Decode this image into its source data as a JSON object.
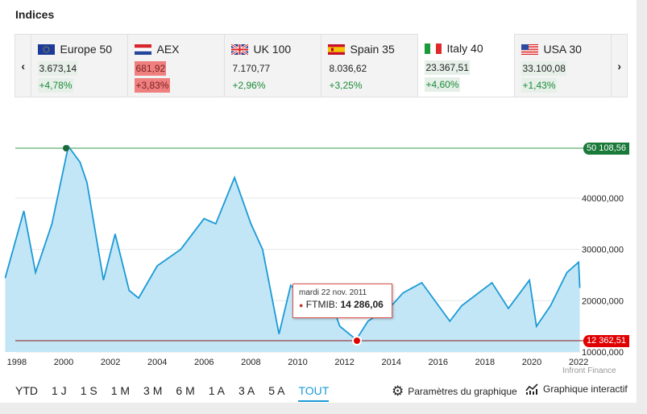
{
  "header": {
    "title": "Indices"
  },
  "tabs": [
    {
      "name": "Europe 50",
      "flag": "eu",
      "value": "3.673,14",
      "change": "+4,78%",
      "state": "up-highlight"
    },
    {
      "name": "AEX",
      "flag": "nl",
      "value": "681,92",
      "change": "+3,83%",
      "state": "down-highlight"
    },
    {
      "name": "UK 100",
      "flag": "uk",
      "value": "7.170,77",
      "change": "+2,96%",
      "state": "plain"
    },
    {
      "name": "Spain 35",
      "flag": "es",
      "value": "8.036,62",
      "change": "+3,25%",
      "state": "plain"
    },
    {
      "name": "Italy 40",
      "flag": "it",
      "value": "23.367,51",
      "change": "+4,60%",
      "state": "active"
    },
    {
      "name": "USA 30",
      "flag": "us",
      "value": "33.100,08",
      "change": "+1,43%",
      "state": "up-highlight"
    }
  ],
  "nav": {
    "prev_icon": "chevron-left-icon",
    "next_icon": "chevron-right-icon"
  },
  "chart_data": {
    "type": "area",
    "x_ticks": [
      "1998",
      "2000",
      "2002",
      "2004",
      "2006",
      "2008",
      "2010",
      "2012",
      "2014",
      "2016",
      "2018",
      "2020",
      "2022"
    ],
    "y_ticks": [
      "10000,000",
      "20000,000",
      "30000,000",
      "40000,000"
    ],
    "ylim": [
      10000,
      51000
    ],
    "series": [
      {
        "name": "FTMIB",
        "x": [
          1997.5,
          1998.3,
          1998.8,
          1999.5,
          2000.2,
          2000.7,
          2001.0,
          2001.7,
          2002.2,
          2002.8,
          2003.2,
          2004,
          2005,
          2006,
          2006.5,
          2007.3,
          2008,
          2008.5,
          2009.2,
          2009.7,
          2010.5,
          2011.2,
          2011.8,
          2012.5,
          2013,
          2014,
          2014.5,
          2015.3,
          2016.5,
          2017,
          2018.3,
          2019,
          2019.9,
          2020.2,
          2020.8,
          2021.5,
          2022.0,
          2022.05
        ],
        "y": [
          24400,
          37500,
          25500,
          35000,
          50100,
          47000,
          43000,
          24000,
          33000,
          22000,
          20500,
          26800,
          30000,
          36000,
          35000,
          44000,
          35000,
          30000,
          13500,
          23000,
          19000,
          22500,
          15000,
          12400,
          16000,
          19000,
          21500,
          23500,
          16000,
          19000,
          23500,
          18500,
          24000,
          15000,
          19000,
          25500,
          27500,
          22500
        ]
      }
    ],
    "max_label": "50 108,56",
    "min_label": "12 362,51",
    "colors": {
      "line": "#1a9ad6",
      "fill": "#c3e6f6",
      "max": "#1a7a3a",
      "min": "#e00000"
    },
    "tooltip": {
      "date": "mardi 22 nov. 2011",
      "series": "FTMIB:",
      "value": "14 286,06"
    },
    "credit": "Infront Finance"
  },
  "ranges": [
    "YTD",
    "1 J",
    "1 S",
    "1 M",
    "3 M",
    "6 M",
    "1 A",
    "3 A",
    "5 A",
    "TOUT"
  ],
  "active_range": "TOUT",
  "tools": {
    "settings": "Paramètres du graphique",
    "interactive": "Graphique interactif"
  }
}
